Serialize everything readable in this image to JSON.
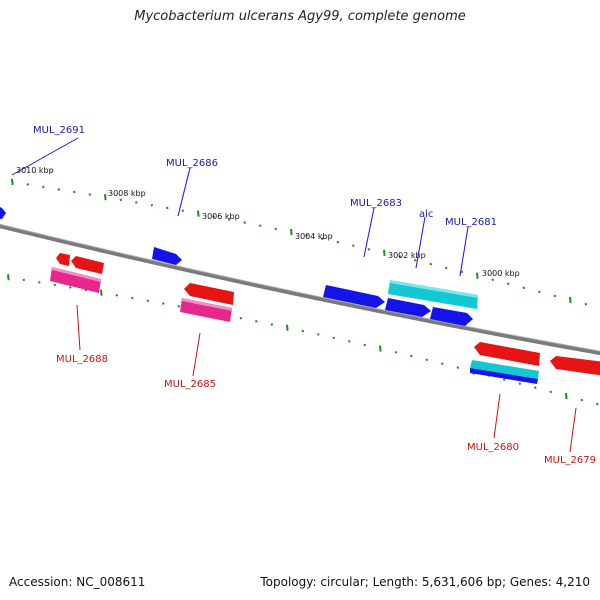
{
  "title": "Mycobacterium ulcerans Agy99, complete genome",
  "footer": {
    "accession": "Accession: NC_008611",
    "summary": "Topology: circular; Length: 5,631,606 bp; Genes: 4,210"
  },
  "colors": {
    "backbone": "#808080",
    "tick": "#1e8c1e",
    "forward_cds": "#1414e6",
    "reverse_cds": "#e61414",
    "rna_cyan": "#14c8d2",
    "pink": "#e6288c",
    "label_blue": "#1a1aa0",
    "label_red": "#c81414"
  },
  "ticks": {
    "outer_labels": [
      "3010 kbp",
      "3008 kbp",
      "3006 kbp",
      "3004 kbp",
      "3002 kbp",
      "3000 kbp"
    ]
  },
  "gene_labels": {
    "top": [
      "MUL_2691",
      "MUL_2686",
      "MUL_2683",
      "alc",
      "MUL_2681"
    ],
    "bottom": [
      "MUL_2688",
      "MUL_2685",
      "MUL_2680",
      "MUL_2679"
    ]
  }
}
